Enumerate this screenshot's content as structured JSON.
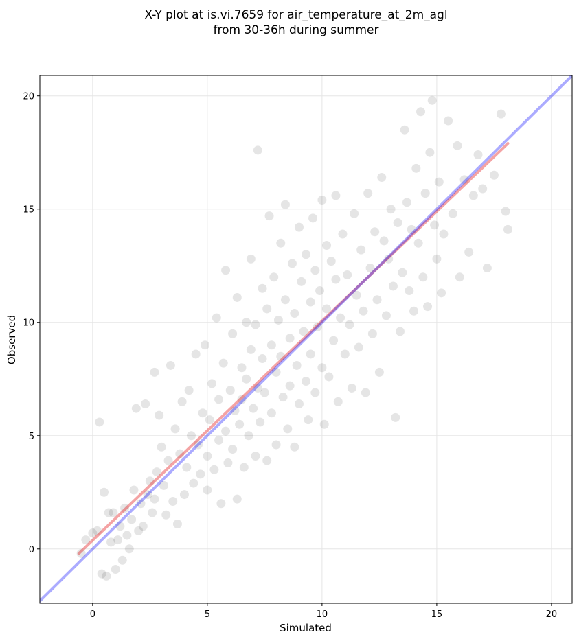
{
  "chart_data": {
    "type": "scatter",
    "title": [
      "X-Y plot at is.vi.7659 for air_temperature_at_2m_agl",
      "from 30-36h during summer"
    ],
    "xlabel": "Simulated",
    "ylabel": "Observed",
    "xlim": [
      -2.3,
      20.9
    ],
    "ylim": [
      -2.4,
      20.9
    ],
    "xticks": [
      0,
      5,
      10,
      15,
      20
    ],
    "yticks": [
      0,
      5,
      10,
      15,
      20
    ],
    "grid": true,
    "marker_color": "#000000",
    "marker_alpha": 0.1,
    "series": [
      {
        "kind": "points",
        "points": [
          [
            -0.5,
            -0.2
          ],
          [
            -0.3,
            0.4
          ],
          [
            0.0,
            0.7
          ],
          [
            0.2,
            0.8
          ],
          [
            0.3,
            5.6
          ],
          [
            0.4,
            -1.1
          ],
          [
            0.5,
            2.5
          ],
          [
            0.6,
            -1.2
          ],
          [
            0.7,
            1.6
          ],
          [
            0.8,
            0.3
          ],
          [
            0.9,
            1.6
          ],
          [
            1.0,
            -0.9
          ],
          [
            1.1,
            0.4
          ],
          [
            1.2,
            1.0
          ],
          [
            1.3,
            -0.5
          ],
          [
            1.4,
            1.8
          ],
          [
            1.5,
            0.6
          ],
          [
            1.6,
            0.0
          ],
          [
            1.7,
            1.3
          ],
          [
            1.8,
            2.6
          ],
          [
            1.9,
            6.2
          ],
          [
            2.0,
            0.8
          ],
          [
            2.1,
            2.0
          ],
          [
            2.2,
            1.0
          ],
          [
            2.3,
            6.4
          ],
          [
            2.4,
            2.4
          ],
          [
            2.5,
            3.0
          ],
          [
            2.6,
            1.6
          ],
          [
            2.7,
            7.8
          ],
          [
            2.7,
            2.2
          ],
          [
            2.8,
            3.4
          ],
          [
            2.9,
            5.9
          ],
          [
            3.0,
            4.5
          ],
          [
            3.1,
            2.8
          ],
          [
            3.2,
            1.5
          ],
          [
            3.3,
            3.9
          ],
          [
            3.4,
            8.1
          ],
          [
            3.5,
            2.1
          ],
          [
            3.6,
            5.3
          ],
          [
            3.7,
            1.1
          ],
          [
            3.8,
            4.2
          ],
          [
            3.9,
            6.5
          ],
          [
            4.0,
            2.4
          ],
          [
            4.1,
            3.6
          ],
          [
            4.2,
            7.0
          ],
          [
            4.3,
            5.0
          ],
          [
            4.4,
            2.9
          ],
          [
            4.5,
            8.6
          ],
          [
            4.6,
            4.6
          ],
          [
            4.7,
            3.3
          ],
          [
            4.8,
            6.0
          ],
          [
            4.9,
            9.0
          ],
          [
            5.0,
            4.1
          ],
          [
            5.0,
            2.6
          ],
          [
            5.1,
            5.7
          ],
          [
            5.2,
            7.3
          ],
          [
            5.3,
            3.5
          ],
          [
            5.4,
            10.2
          ],
          [
            5.5,
            4.8
          ],
          [
            5.5,
            6.6
          ],
          [
            5.6,
            2.0
          ],
          [
            5.7,
            8.2
          ],
          [
            5.8,
            12.3
          ],
          [
            5.8,
            5.2
          ],
          [
            5.9,
            3.8
          ],
          [
            6.0,
            7.0
          ],
          [
            6.1,
            9.5
          ],
          [
            6.1,
            4.4
          ],
          [
            6.2,
            6.1
          ],
          [
            6.3,
            11.1
          ],
          [
            6.3,
            2.2
          ],
          [
            6.4,
            5.5
          ],
          [
            6.5,
            8.0
          ],
          [
            6.5,
            6.6
          ],
          [
            6.6,
            3.6
          ],
          [
            6.7,
            10.0
          ],
          [
            6.7,
            7.5
          ],
          [
            6.8,
            5.0
          ],
          [
            6.9,
            12.8
          ],
          [
            6.9,
            8.8
          ],
          [
            7.0,
            6.2
          ],
          [
            7.1,
            4.1
          ],
          [
            7.1,
            9.9
          ],
          [
            7.2,
            17.6
          ],
          [
            7.2,
            7.1
          ],
          [
            7.3,
            5.6
          ],
          [
            7.4,
            11.5
          ],
          [
            7.4,
            8.4
          ],
          [
            7.5,
            6.9
          ],
          [
            7.6,
            3.9
          ],
          [
            7.6,
            10.6
          ],
          [
            7.7,
            14.7
          ],
          [
            7.8,
            9.0
          ],
          [
            7.8,
            6.0
          ],
          [
            7.9,
            12.0
          ],
          [
            8.0,
            7.8
          ],
          [
            8.0,
            4.6
          ],
          [
            8.1,
            10.1
          ],
          [
            8.2,
            13.5
          ],
          [
            8.2,
            8.5
          ],
          [
            8.3,
            6.7
          ],
          [
            8.4,
            15.2
          ],
          [
            8.4,
            11.0
          ],
          [
            8.5,
            5.3
          ],
          [
            8.6,
            9.3
          ],
          [
            8.6,
            7.2
          ],
          [
            8.7,
            12.6
          ],
          [
            8.8,
            4.5
          ],
          [
            8.8,
            10.4
          ],
          [
            8.9,
            8.1
          ],
          [
            9.0,
            14.2
          ],
          [
            9.0,
            6.4
          ],
          [
            9.1,
            11.8
          ],
          [
            9.2,
            9.6
          ],
          [
            9.3,
            7.4
          ],
          [
            9.3,
            13.0
          ],
          [
            9.4,
            5.7
          ],
          [
            9.5,
            10.9
          ],
          [
            9.5,
            8.6
          ],
          [
            9.6,
            14.6
          ],
          [
            9.7,
            12.3
          ],
          [
            9.7,
            6.9
          ],
          [
            9.8,
            9.8
          ],
          [
            9.9,
            11.4
          ],
          [
            10.0,
            15.4
          ],
          [
            10.0,
            8.0
          ],
          [
            10.1,
            5.5
          ],
          [
            10.2,
            13.4
          ],
          [
            10.2,
            10.6
          ],
          [
            10.3,
            7.6
          ],
          [
            10.4,
            12.7
          ],
          [
            10.5,
            9.2
          ],
          [
            10.6,
            15.6
          ],
          [
            10.6,
            11.9
          ],
          [
            10.7,
            6.5
          ],
          [
            10.8,
            10.2
          ],
          [
            10.9,
            13.9
          ],
          [
            11.0,
            8.6
          ],
          [
            11.1,
            12.1
          ],
          [
            11.2,
            9.9
          ],
          [
            11.3,
            7.1
          ],
          [
            11.4,
            14.8
          ],
          [
            11.5,
            11.2
          ],
          [
            11.6,
            8.9
          ],
          [
            11.7,
            13.2
          ],
          [
            11.8,
            10.5
          ],
          [
            11.9,
            6.9
          ],
          [
            12.0,
            15.7
          ],
          [
            12.1,
            12.4
          ],
          [
            12.2,
            9.5
          ],
          [
            12.3,
            14.0
          ],
          [
            12.4,
            11.0
          ],
          [
            12.5,
            7.8
          ],
          [
            12.6,
            16.4
          ],
          [
            12.7,
            13.6
          ],
          [
            12.8,
            10.3
          ],
          [
            12.9,
            12.8
          ],
          [
            13.0,
            15.0
          ],
          [
            13.1,
            11.6
          ],
          [
            13.2,
            5.8
          ],
          [
            13.3,
            14.4
          ],
          [
            13.4,
            9.6
          ],
          [
            13.5,
            12.2
          ],
          [
            13.6,
            18.5
          ],
          [
            13.7,
            15.3
          ],
          [
            13.8,
            11.4
          ],
          [
            13.9,
            14.1
          ],
          [
            14.0,
            10.5
          ],
          [
            14.1,
            16.8
          ],
          [
            14.2,
            13.5
          ],
          [
            14.3,
            19.3
          ],
          [
            14.4,
            12.0
          ],
          [
            14.5,
            15.7
          ],
          [
            14.6,
            10.7
          ],
          [
            14.7,
            17.5
          ],
          [
            14.8,
            19.8
          ],
          [
            14.9,
            14.3
          ],
          [
            15.0,
            12.8
          ],
          [
            15.1,
            16.2
          ],
          [
            15.2,
            11.3
          ],
          [
            15.3,
            13.9
          ],
          [
            15.5,
            18.9
          ],
          [
            15.7,
            14.8
          ],
          [
            15.9,
            17.8
          ],
          [
            16.0,
            12.0
          ],
          [
            16.2,
            16.3
          ],
          [
            16.4,
            13.1
          ],
          [
            16.6,
            15.6
          ],
          [
            16.8,
            17.4
          ],
          [
            17.0,
            15.9
          ],
          [
            17.2,
            12.4
          ],
          [
            17.5,
            16.5
          ],
          [
            17.8,
            19.2
          ],
          [
            18.0,
            14.9
          ],
          [
            18.1,
            14.1
          ]
        ]
      },
      {
        "kind": "line",
        "color": "#e41a1c",
        "alpha": 0.4,
        "x": [
          -0.6,
          18.1
        ],
        "y": [
          -0.2,
          17.9
        ]
      },
      {
        "kind": "line",
        "color": "#0000ff",
        "alpha": 0.33,
        "x": [
          -2.3,
          20.9
        ],
        "y": [
          -2.3,
          20.9
        ]
      }
    ]
  }
}
